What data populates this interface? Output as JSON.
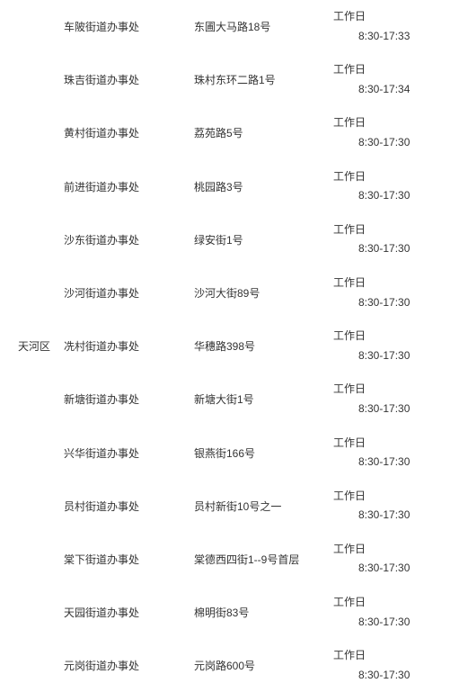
{
  "district": "天河区",
  "rows": [
    {
      "office": "车陂街道办事处",
      "address": "东圃大马路18号",
      "hours_label": "工作日",
      "hours_time": "8:30-17:33"
    },
    {
      "office": "珠吉街道办事处",
      "address": "珠村东环二路1号",
      "hours_label": "工作日",
      "hours_time": "8:30-17:34"
    },
    {
      "office": "黄村街道办事处",
      "address": "荔苑路5号",
      "hours_label": "工作日",
      "hours_time": "8:30-17:30"
    },
    {
      "office": "前进街道办事处",
      "address": "桃园路3号",
      "hours_label": "工作日",
      "hours_time": "8:30-17:30"
    },
    {
      "office": "沙东街道办事处",
      "address": "绿安街1号",
      "hours_label": "工作日",
      "hours_time": "8:30-17:30"
    },
    {
      "office": "沙河街道办事处",
      "address": "沙河大街89号",
      "hours_label": "工作日",
      "hours_time": "8:30-17:30"
    },
    {
      "office": "冼村街道办事处",
      "address": "华穗路398号",
      "hours_label": "工作日",
      "hours_time": "8:30-17:30"
    },
    {
      "office": "新塘街道办事处",
      "address": "新塘大街1号",
      "hours_label": "工作日",
      "hours_time": "8:30-17:30"
    },
    {
      "office": "兴华街道办事处",
      "address": "银燕街166号",
      "hours_label": "工作日",
      "hours_time": "8:30-17:30"
    },
    {
      "office": "员村街道办事处",
      "address": "员村新街10号之一",
      "hours_label": "工作日",
      "hours_time": "8:30-17:30"
    },
    {
      "office": "棠下街道办事处",
      "address": "棠德西四街1--9号首层",
      "hours_label": "工作日",
      "hours_time": "8:30-17:30"
    },
    {
      "office": "天园街道办事处",
      "address": "棉明街83号",
      "hours_label": "工作日",
      "hours_time": "8:30-17:30"
    },
    {
      "office": "元岗街道办事处",
      "address": "元岗路600号",
      "hours_label": "工作日",
      "hours_time": "8:30-17:30"
    }
  ]
}
